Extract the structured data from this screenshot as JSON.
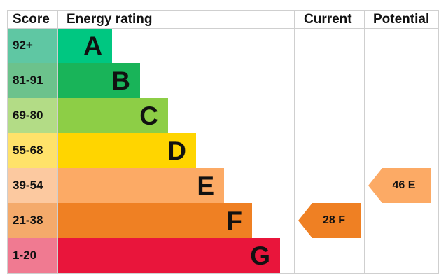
{
  "headers": {
    "score": "Score",
    "rating": "Energy rating",
    "current": "Current",
    "potential": "Potential"
  },
  "chart_data": {
    "type": "bar",
    "categories": [
      "A",
      "B",
      "C",
      "D",
      "E",
      "F",
      "G"
    ],
    "score_ranges": [
      "92+",
      "81-91",
      "69-80",
      "55-68",
      "39-54",
      "21-38",
      "1-20"
    ],
    "band_colors": [
      "#00c781",
      "#19b459",
      "#8dce46",
      "#ffd500",
      "#fcaa65",
      "#ef8023",
      "#e9153b"
    ],
    "score_cell_colors": [
      "#5fc7a3",
      "#6cc28c",
      "#b3dc86",
      "#ffe26a",
      "#fcc9a0",
      "#f4aa6b",
      "#f07a91"
    ],
    "current": {
      "value": 28,
      "band": "F",
      "label": "28 F"
    },
    "potential": {
      "value": 46,
      "band": "E",
      "label": "46 E"
    }
  }
}
